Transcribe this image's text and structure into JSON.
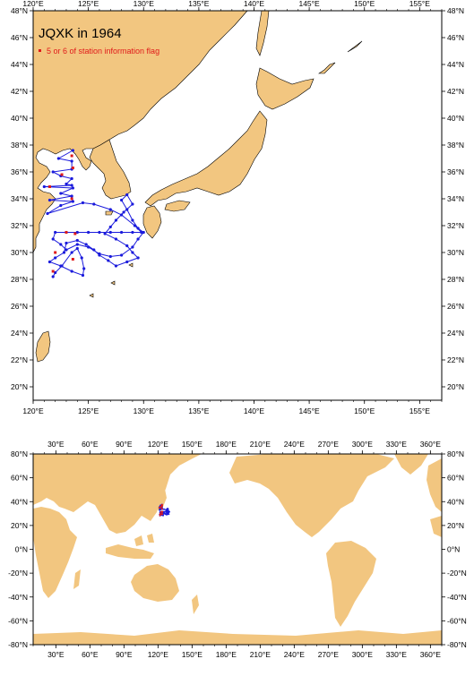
{
  "colors": {
    "land": "#f2c680",
    "ocean": "#ffffff",
    "track": "#1a1adc",
    "flag": "#e01a1a",
    "frame": "#000000"
  },
  "regional_map": {
    "title": "JQXK in 1964",
    "legend_label": "5 or 6 of station information flag",
    "lon_range": [
      120,
      157
    ],
    "lat_range": [
      19,
      48
    ],
    "lon_ticks": [
      "120°E",
      "125°E",
      "130°E",
      "135°E",
      "140°E",
      "145°E",
      "150°E",
      "155°E"
    ],
    "lat_ticks": [
      "20°N",
      "22°N",
      "24°N",
      "26°N",
      "28°N",
      "30°N",
      "32°N",
      "34°N",
      "36°N",
      "38°N",
      "40°N",
      "42°N",
      "44°N",
      "46°N",
      "48°N"
    ]
  },
  "global_map": {
    "lon_range": [
      10,
      370
    ],
    "lat_range": [
      -80,
      80
    ],
    "lon_ticks": [
      "30°E",
      "60°E",
      "90°E",
      "120°E",
      "150°E",
      "180°E",
      "210°E",
      "240°E",
      "270°E",
      "300°E",
      "330°E",
      "360°E"
    ],
    "lat_ticks": [
      "80°N",
      "60°N",
      "40°N",
      "20°N",
      "0°N",
      "-20°N",
      "-40°N",
      "-60°N",
      "-80°N"
    ]
  },
  "chart_data": {
    "type": "scatter",
    "title": "JQXK in 1964",
    "series": [
      {
        "name": "5 or 6 of station information flag",
        "x": [
          123.5,
          123.6,
          121.5,
          122.6,
          123.5,
          123.0,
          123.8,
          122.0,
          121.8,
          123.6
        ],
        "y": [
          37.2,
          36.3,
          34.9,
          35.8,
          34.0,
          31.5,
          31.4,
          30.0,
          28.6,
          29.5
        ]
      }
    ],
    "track_lon": [
      123.6,
      122.3,
      123.5,
      123.5,
      121.8,
      122.5,
      123.5,
      123.0,
      123.5,
      121.0,
      123.6,
      122.5,
      123.5,
      121.5,
      123.6,
      122.5,
      121.3,
      124.5,
      125.5,
      127.0,
      128.0,
      129.2,
      129.8,
      129.0,
      128.0,
      127.0,
      126.0,
      125.0,
      124.0,
      123.0,
      122.0,
      121.8,
      122.5,
      123.0,
      124.0,
      125.0,
      126.0,
      127.0,
      128.0,
      129.0,
      129.5,
      130.0,
      129.5,
      129.0,
      128.5,
      128.0,
      128.5,
      129.0,
      128.2,
      127.5,
      127.0,
      126.5,
      127.5,
      128.5,
      129.0,
      129.5,
      128.5,
      127.5,
      126.8,
      126.0,
      125.5,
      124.8,
      124.0,
      123.0,
      122.8,
      122.0,
      121.5,
      122.5,
      123.5,
      124.5,
      124.6,
      124.4,
      124.0,
      123.5,
      122.6,
      122.0,
      121.8
    ],
    "track_lat": [
      37.6,
      37.0,
      36.8,
      36.2,
      36.0,
      35.7,
      35.5,
      35.1,
      35.0,
      34.9,
      34.8,
      34.4,
      34.2,
      33.9,
      33.8,
      33.5,
      32.9,
      33.7,
      33.6,
      33.2,
      32.8,
      32.0,
      31.5,
      31.5,
      31.5,
      31.5,
      31.5,
      31.5,
      31.5,
      31.5,
      31.5,
      31.0,
      30.6,
      30.2,
      30.6,
      30.4,
      29.9,
      29.7,
      29.8,
      30.4,
      31.0,
      31.5,
      31.8,
      32.4,
      33.2,
      33.9,
      34.3,
      33.6,
      33.0,
      32.4,
      31.9,
      31.4,
      31.0,
      30.5,
      30.0,
      29.6,
      29.3,
      29.0,
      29.4,
      29.8,
      30.2,
      30.6,
      30.9,
      30.7,
      30.0,
      29.6,
      29.3,
      29.0,
      28.6,
      28.3,
      28.8,
      29.6,
      30.3,
      30.0,
      29.0,
      28.5,
      28.2
    ]
  }
}
